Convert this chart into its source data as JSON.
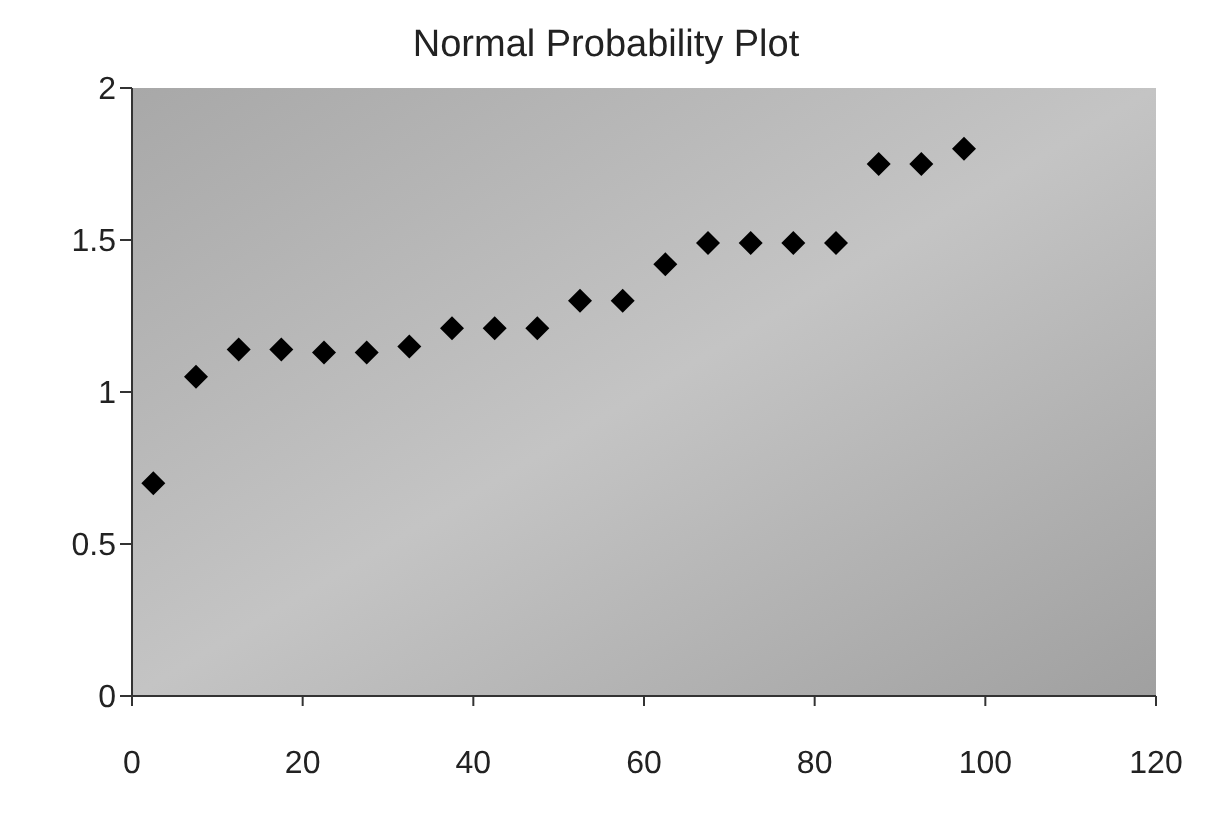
{
  "chart_data": {
    "type": "scatter",
    "title": "Normal Probability Plot",
    "x": [
      2.5,
      7.5,
      12.5,
      17.5,
      22.5,
      27.5,
      32.5,
      37.5,
      42.5,
      47.5,
      52.5,
      57.5,
      62.5,
      67.5,
      72.5,
      77.5,
      82.5,
      87.5,
      92.5,
      97.5
    ],
    "series": [
      {
        "color": "#000000",
        "values": [
          0.7,
          1.05,
          1.14,
          1.14,
          1.13,
          1.13,
          1.15,
          1.21,
          1.21,
          1.21,
          1.3,
          1.3,
          1.42,
          1.49,
          1.49,
          1.49,
          1.49,
          1.75,
          1.75,
          1.8
        ]
      }
    ],
    "xlim": [
      0,
      120
    ],
    "xticks": [
      0,
      20,
      40,
      60,
      80,
      100,
      120
    ],
    "ylim": [
      0,
      2
    ],
    "yticks": [
      0,
      0.5,
      1,
      1.5,
      2
    ],
    "marker": "diamond",
    "grid": false,
    "legend": false
  }
}
